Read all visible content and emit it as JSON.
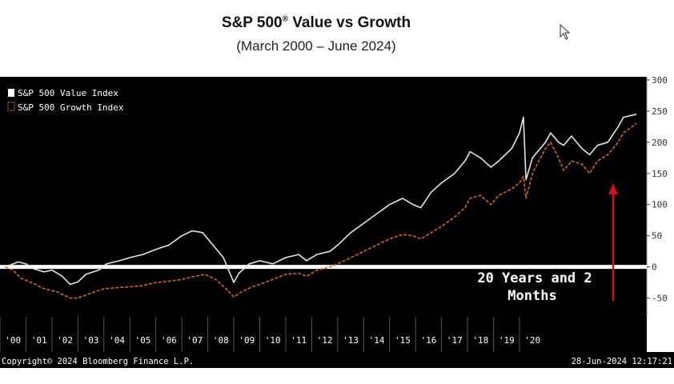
{
  "title": "S&P 500",
  "title_mark": "®",
  "title_rest": " Value vs Growth",
  "subtitle": "(March 2000 – June 2024)",
  "footer": {
    "copyright": "Copyright© 2024 Bloomberg Finance L.P.",
    "timestamp": "28-Jun-2024 12:17:21"
  },
  "colors": {
    "background": "#000000",
    "value_line": "#e6e6e6",
    "growth_line": "#d2691e",
    "zero_line": "#ffffff",
    "arrow": "#d0101c"
  },
  "annotation": {
    "line1": "20 Years and 2",
    "line2": "Months"
  },
  "chart_data": {
    "type": "line",
    "title": "S&P 500® Value vs Growth",
    "subtitle": "(March 2000 – June 2024)",
    "x_unit": "year",
    "xlim": [
      2000.0,
      2024.9
    ],
    "ylim": [
      -80,
      305
    ],
    "y_ticks": [
      300,
      250,
      200,
      150,
      100,
      50,
      0,
      -50
    ],
    "x_tick_labels": [
      "'00",
      "'01",
      "'02",
      "'03",
      "'04",
      "'05",
      "'06",
      "'07",
      "'08",
      "'09",
      "'10",
      "'11",
      "'12",
      "'13",
      "'14",
      "'15",
      "'16",
      "'17",
      "'18",
      "'19",
      "'20"
    ],
    "legend_position": "top-left",
    "grid": false,
    "reference_line": 0,
    "series": [
      {
        "name": "S&P 500 Value Index",
        "style": "solid",
        "points": [
          [
            2000.2,
            0
          ],
          [
            2000.4,
            3
          ],
          [
            2000.7,
            8
          ],
          [
            2001.0,
            5
          ],
          [
            2001.3,
            -3
          ],
          [
            2001.7,
            -8
          ],
          [
            2002.0,
            -5
          ],
          [
            2002.4,
            -15
          ],
          [
            2002.7,
            -28
          ],
          [
            2003.0,
            -24
          ],
          [
            2003.3,
            -12
          ],
          [
            2003.8,
            -5
          ],
          [
            2004.1,
            5
          ],
          [
            2004.6,
            10
          ],
          [
            2005.0,
            15
          ],
          [
            2005.5,
            20
          ],
          [
            2006.0,
            28
          ],
          [
            2006.5,
            35
          ],
          [
            2007.0,
            50
          ],
          [
            2007.4,
            58
          ],
          [
            2007.8,
            55
          ],
          [
            2008.2,
            35
          ],
          [
            2008.6,
            15
          ],
          [
            2009.0,
            -25
          ],
          [
            2009.2,
            -10
          ],
          [
            2009.6,
            5
          ],
          [
            2010.0,
            10
          ],
          [
            2010.5,
            5
          ],
          [
            2011.0,
            15
          ],
          [
            2011.5,
            20
          ],
          [
            2011.8,
            10
          ],
          [
            2012.2,
            20
          ],
          [
            2012.7,
            25
          ],
          [
            2013.0,
            35
          ],
          [
            2013.5,
            55
          ],
          [
            2014.0,
            70
          ],
          [
            2014.5,
            85
          ],
          [
            2015.0,
            100
          ],
          [
            2015.5,
            110
          ],
          [
            2015.9,
            100
          ],
          [
            2016.2,
            95
          ],
          [
            2016.6,
            120
          ],
          [
            2017.0,
            135
          ],
          [
            2017.5,
            150
          ],
          [
            2017.9,
            170
          ],
          [
            2018.1,
            185
          ],
          [
            2018.5,
            175
          ],
          [
            2018.9,
            160
          ],
          [
            2019.2,
            170
          ],
          [
            2019.7,
            190
          ],
          [
            2020.0,
            215
          ],
          [
            2020.15,
            240
          ],
          [
            2020.25,
            140
          ],
          [
            2020.5,
            175
          ],
          [
            2020.8,
            190
          ],
          [
            2021.0,
            200
          ],
          [
            2021.2,
            215
          ],
          [
            2021.5,
            200
          ],
          [
            2021.7,
            195
          ],
          [
            2022.0,
            210
          ],
          [
            2022.4,
            190
          ],
          [
            2022.7,
            180
          ],
          [
            2023.0,
            195
          ],
          [
            2023.4,
            200
          ],
          [
            2023.8,
            225
          ],
          [
            2024.0,
            240
          ],
          [
            2024.5,
            245
          ]
        ]
      },
      {
        "name": "S&P 500 Growth Index",
        "style": "dashed",
        "points": [
          [
            2000.2,
            0
          ],
          [
            2000.5,
            -5
          ],
          [
            2000.8,
            -18
          ],
          [
            2001.2,
            -25
          ],
          [
            2001.7,
            -35
          ],
          [
            2002.2,
            -40
          ],
          [
            2002.7,
            -50
          ],
          [
            2003.0,
            -50
          ],
          [
            2003.5,
            -42
          ],
          [
            2004.0,
            -35
          ],
          [
            2004.6,
            -33
          ],
          [
            2005.0,
            -32
          ],
          [
            2005.5,
            -30
          ],
          [
            2006.0,
            -25
          ],
          [
            2006.5,
            -23
          ],
          [
            2007.0,
            -20
          ],
          [
            2007.5,
            -15
          ],
          [
            2007.9,
            -12
          ],
          [
            2008.3,
            -20
          ],
          [
            2008.7,
            -35
          ],
          [
            2009.0,
            -48
          ],
          [
            2009.3,
            -40
          ],
          [
            2009.7,
            -32
          ],
          [
            2010.0,
            -28
          ],
          [
            2010.5,
            -20
          ],
          [
            2011.0,
            -12
          ],
          [
            2011.5,
            -10
          ],
          [
            2011.8,
            -15
          ],
          [
            2012.2,
            -5
          ],
          [
            2012.7,
            0
          ],
          [
            2013.0,
            5
          ],
          [
            2013.5,
            15
          ],
          [
            2014.0,
            25
          ],
          [
            2014.5,
            35
          ],
          [
            2015.0,
            45
          ],
          [
            2015.5,
            52
          ],
          [
            2015.9,
            50
          ],
          [
            2016.2,
            45
          ],
          [
            2016.6,
            55
          ],
          [
            2017.0,
            65
          ],
          [
            2017.5,
            80
          ],
          [
            2017.9,
            95
          ],
          [
            2018.1,
            110
          ],
          [
            2018.5,
            115
          ],
          [
            2018.9,
            100
          ],
          [
            2019.2,
            115
          ],
          [
            2019.7,
            125
          ],
          [
            2020.0,
            135
          ],
          [
            2020.15,
            145
          ],
          [
            2020.25,
            110
          ],
          [
            2020.5,
            150
          ],
          [
            2020.8,
            175
          ],
          [
            2021.0,
            190
          ],
          [
            2021.2,
            200
          ],
          [
            2021.5,
            175
          ],
          [
            2021.7,
            155
          ],
          [
            2022.0,
            170
          ],
          [
            2022.4,
            165
          ],
          [
            2022.7,
            150
          ],
          [
            2023.0,
            170
          ],
          [
            2023.4,
            180
          ],
          [
            2023.8,
            200
          ],
          [
            2024.0,
            215
          ],
          [
            2024.5,
            230
          ]
        ]
      }
    ]
  }
}
